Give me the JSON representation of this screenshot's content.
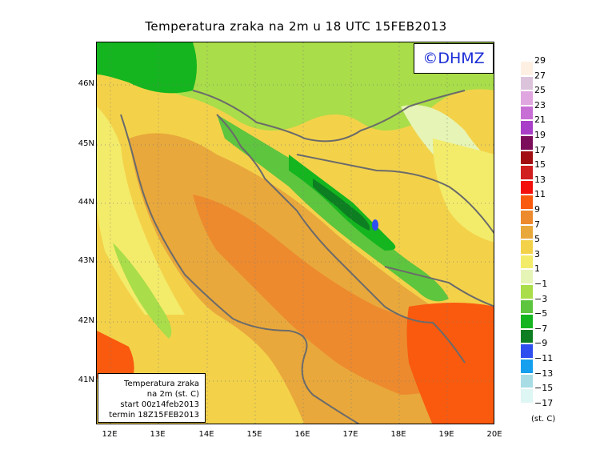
{
  "title": "Temperatura zraka na 2m u 18 UTC 15FEB2013",
  "copyright": "©DHMZ",
  "info_box": {
    "line1": "Temperatura zraka",
    "line2": "na 2m (st. C)",
    "line3": "start 00z14feb2013",
    "line4": "termin 18Z15FEB2013"
  },
  "lat_labels": [
    "46N",
    "45N",
    "44N",
    "43N",
    "42N",
    "41N"
  ],
  "lon_labels": [
    "12E",
    "13E",
    "14E",
    "15E",
    "16E",
    "17E",
    "18E",
    "19E",
    "20E"
  ],
  "colorbar": {
    "labels": [
      "29",
      "27",
      "25",
      "23",
      "21",
      "19",
      "17",
      "15",
      "13",
      "11",
      "9",
      "7",
      "5",
      "3",
      "1",
      "−1",
      "−3",
      "−5",
      "−7",
      "−9",
      "−11",
      "−13",
      "−15",
      "−17"
    ],
    "colors": [
      "#fdf0e3",
      "#dcc3dc",
      "#e0a6df",
      "#c86fd6",
      "#a93fc8",
      "#7b0d5b",
      "#a10d10",
      "#d11e1e",
      "#f3100c",
      "#f95a0e",
      "#ed8a2e",
      "#e9a83b",
      "#f3d24a",
      "#f3ec6a",
      "#e6f4b6",
      "#a9dd49",
      "#5ec53e",
      "#14b51f",
      "#0d7e21",
      "#2e4ef0",
      "#14a0ef",
      "#a8dde6",
      "#def6f4"
    ],
    "unit": "(st. C)"
  }
}
